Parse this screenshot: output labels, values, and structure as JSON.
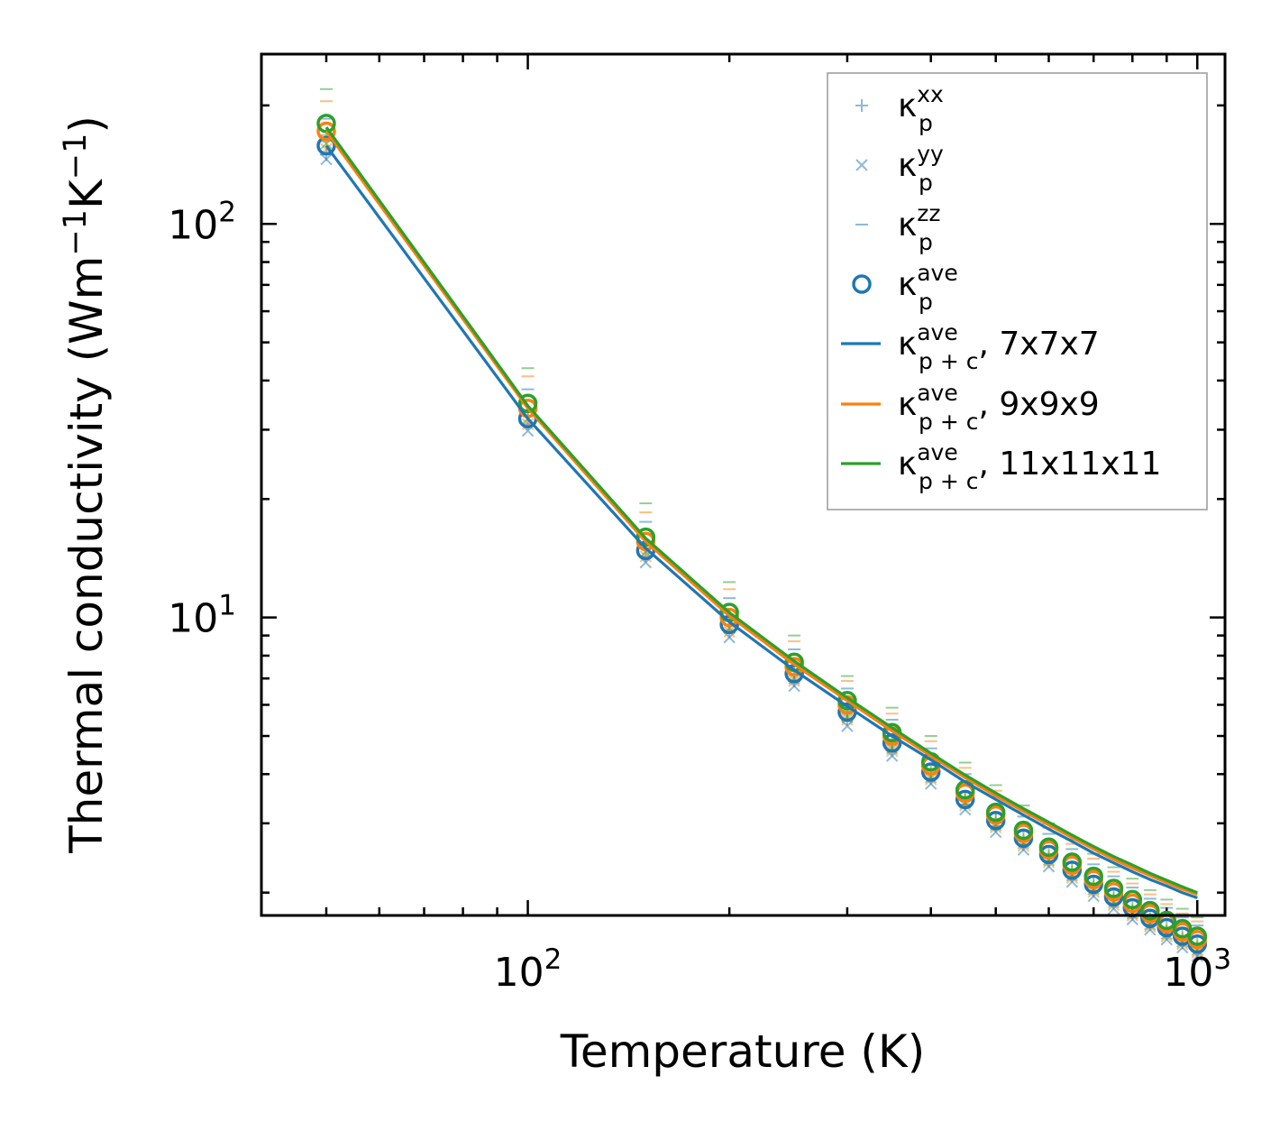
{
  "chart_data": {
    "type": "scatter",
    "xscale": "log",
    "yscale": "log",
    "xlim": [
      40,
      1100
    ],
    "ylim": [
      1.75,
      270
    ],
    "x_tick_labels": [
      {
        "value": 100,
        "base": "10",
        "exp": "2"
      },
      {
        "value": 1000,
        "base": "10",
        "exp": "3"
      }
    ],
    "y_tick_labels": [
      {
        "value": 10,
        "base": "10",
        "exp": "1"
      },
      {
        "value": 100,
        "base": "10",
        "exp": "2"
      }
    ],
    "xlabel": "Temperature (K)",
    "ylabel": {
      "prefix": "Thermal conductivity (Wm",
      "exp1": "−1",
      "mid": "K",
      "exp2": "−1",
      "suffix": ")"
    },
    "legend_position": "upper right",
    "legend": [
      {
        "symbol": "κ",
        "sub": "p",
        "sup": "xx",
        "suffix": "",
        "marker": "plus",
        "color": "#1f77b4"
      },
      {
        "symbol": "κ",
        "sub": "p",
        "sup": "yy",
        "suffix": "",
        "marker": "x",
        "color": "#1f77b4"
      },
      {
        "symbol": "κ",
        "sub": "p",
        "sup": "zz",
        "suffix": "",
        "marker": "dash",
        "color": "#1f77b4"
      },
      {
        "symbol": "κ",
        "sub": "p",
        "sup": "ave",
        "suffix": "",
        "marker": "circle",
        "color": "#1f77b4"
      },
      {
        "symbol": "κ",
        "sub": "p + c",
        "sup": "ave",
        "suffix": ", 7x7x7",
        "marker": "line",
        "color": "#1f77b4"
      },
      {
        "symbol": "κ",
        "sub": "p + c",
        "sup": "ave",
        "suffix": ", 9x9x9",
        "marker": "line",
        "color": "#ff7f0e"
      },
      {
        "symbol": "κ",
        "sub": "p + c",
        "sup": "ave",
        "suffix": ", 11x11x11",
        "marker": "line",
        "color": "#2ca02c"
      }
    ],
    "x": [
      50,
      100,
      150,
      200,
      250,
      300,
      350,
      400,
      450,
      500,
      550,
      600,
      650,
      700,
      750,
      800,
      850,
      900,
      950,
      1000
    ],
    "series": [
      {
        "name": "7x7x7",
        "color": "#1f77b4",
        "kappa_p_xx": [
          150,
          31.0,
          14.3,
          9.2,
          6.9,
          5.5,
          4.6,
          3.9,
          3.35,
          2.95,
          2.65,
          2.4,
          2.2,
          2.02,
          1.88,
          1.76,
          1.66,
          1.57,
          1.49,
          1.42
        ],
        "kappa_p_yy": [
          146,
          29.8,
          13.8,
          8.9,
          6.7,
          5.3,
          4.45,
          3.78,
          3.25,
          2.85,
          2.57,
          2.33,
          2.13,
          1.96,
          1.82,
          1.71,
          1.61,
          1.52,
          1.45,
          1.38
        ],
        "kappa_p_zz": [
          185,
          38.0,
          17.5,
          11.2,
          8.3,
          6.6,
          5.5,
          4.65,
          4.0,
          3.5,
          3.12,
          2.82,
          2.58,
          2.36,
          2.2,
          2.06,
          1.93,
          1.83,
          1.73,
          1.65
        ],
        "kappa_p_ave": [
          158,
          32.0,
          14.8,
          9.6,
          7.2,
          5.75,
          4.8,
          4.05,
          3.45,
          3.05,
          2.75,
          2.5,
          2.28,
          2.1,
          1.95,
          1.83,
          1.72,
          1.63,
          1.55,
          1.48
        ],
        "kappa_pc_ave": [
          158,
          32.0,
          15.0,
          9.75,
          7.35,
          5.95,
          5.0,
          4.35,
          3.82,
          3.45,
          3.15,
          2.9,
          2.7,
          2.52,
          2.38,
          2.26,
          2.16,
          2.08,
          2.0,
          1.94
        ]
      },
      {
        "name": "9x9x9",
        "color": "#ff7f0e",
        "kappa_p_xx": [
          162,
          32.5,
          15.0,
          9.6,
          7.15,
          5.7,
          4.75,
          4.0,
          3.45,
          3.05,
          2.72,
          2.47,
          2.26,
          2.08,
          1.93,
          1.8,
          1.7,
          1.6,
          1.53,
          1.46
        ],
        "kappa_p_yy": [
          155,
          31.0,
          14.3,
          9.2,
          6.9,
          5.5,
          4.58,
          3.88,
          3.33,
          2.93,
          2.63,
          2.39,
          2.18,
          2.01,
          1.86,
          1.75,
          1.64,
          1.55,
          1.48,
          1.41
        ],
        "kappa_p_zz": [
          205,
          41.0,
          18.5,
          11.8,
          8.7,
          6.9,
          5.7,
          4.85,
          4.15,
          3.63,
          3.23,
          2.92,
          2.66,
          2.44,
          2.26,
          2.11,
          1.98,
          1.87,
          1.77,
          1.69
        ],
        "kappa_p_ave": [
          172,
          34.0,
          15.6,
          10.0,
          7.5,
          6.0,
          5.0,
          4.2,
          3.58,
          3.15,
          2.83,
          2.57,
          2.35,
          2.16,
          2.01,
          1.88,
          1.77,
          1.67,
          1.59,
          1.52
        ],
        "kappa_pc_ave": [
          172,
          34.0,
          15.6,
          10.1,
          7.6,
          6.15,
          5.15,
          4.45,
          3.92,
          3.52,
          3.22,
          2.97,
          2.76,
          2.58,
          2.43,
          2.31,
          2.21,
          2.12,
          2.04,
          1.98
        ]
      },
      {
        "name": "11x11x11",
        "color": "#2ca02c",
        "kappa_p_xx": [
          168,
          33.5,
          15.3,
          9.8,
          7.3,
          5.8,
          4.82,
          4.07,
          3.5,
          3.08,
          2.76,
          2.5,
          2.29,
          2.11,
          1.96,
          1.83,
          1.72,
          1.63,
          1.55,
          1.48
        ],
        "kappa_p_yy": [
          160,
          32.0,
          14.7,
          9.4,
          7.0,
          5.58,
          4.65,
          3.93,
          3.38,
          2.97,
          2.67,
          2.42,
          2.21,
          2.04,
          1.89,
          1.77,
          1.66,
          1.57,
          1.5,
          1.43
        ],
        "kappa_p_zz": [
          220,
          43.0,
          19.5,
          12.3,
          9.0,
          7.1,
          5.9,
          5.0,
          4.28,
          3.75,
          3.33,
          3.0,
          2.73,
          2.51,
          2.32,
          2.17,
          2.03,
          1.92,
          1.82,
          1.73
        ],
        "kappa_p_ave": [
          180,
          35.0,
          16.0,
          10.3,
          7.7,
          6.15,
          5.1,
          4.3,
          3.65,
          3.2,
          2.88,
          2.61,
          2.39,
          2.2,
          2.05,
          1.92,
          1.8,
          1.7,
          1.62,
          1.55
        ],
        "kappa_pc_ave": [
          176,
          34.5,
          15.9,
          10.3,
          7.75,
          6.25,
          5.25,
          4.52,
          3.98,
          3.58,
          3.27,
          3.02,
          2.8,
          2.62,
          2.47,
          2.35,
          2.24,
          2.15,
          2.07,
          2.0
        ]
      }
    ]
  }
}
